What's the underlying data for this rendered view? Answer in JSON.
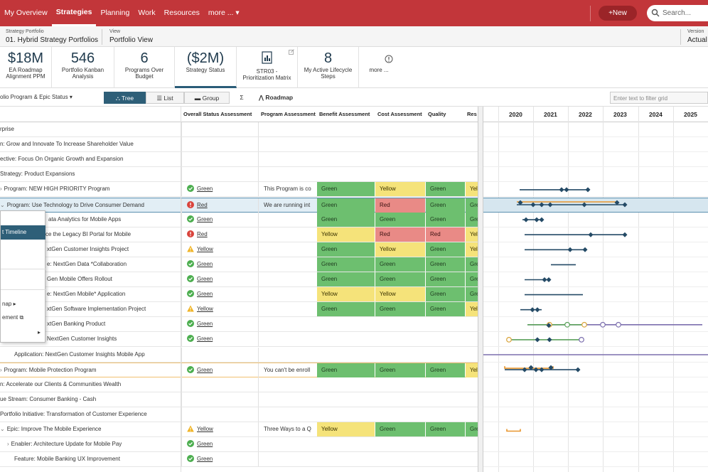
{
  "nav": {
    "items": [
      "My Overview",
      "Strategies",
      "Planning",
      "Work",
      "Resources",
      "more ... ▾"
    ],
    "active": 1,
    "new_label": "+New",
    "search_placeholder": "Search..."
  },
  "context": {
    "portfolio_label": "Strategy Portfolio",
    "portfolio_value": "01. Hybrid Strategy Portfolios",
    "view_label": "View",
    "view_value": "Portfolio View",
    "version_label": "Version",
    "version_value": "Actual"
  },
  "kpis": [
    {
      "big": "$18M",
      "caption": "EA Roadmap Alignment PPM"
    },
    {
      "big": "546",
      "caption": "Portfolio Kanban Analysis"
    },
    {
      "big": "6",
      "caption": "Programs Over Budget"
    },
    {
      "big": "($2M)",
      "caption": "Strategy Status"
    },
    {
      "icon": "matrix-icon",
      "caption": "STR03 - Prioritization Matrix"
    },
    {
      "big": "8",
      "caption": "My Active Lifecycle Steps"
    },
    {
      "icon": "info-icon",
      "caption": "more ..."
    }
  ],
  "toolbar": {
    "grid_title": "olio Program & Epic Status ▾",
    "tree_label": "Tree",
    "list_label": "List",
    "group_label": "Group",
    "sum_label": "Σ",
    "roadmap_label": "Roadmap",
    "filter_placeholder": "Enter text to filter grid"
  },
  "columns": [
    "Overall Status Assessment",
    "Program Assessment",
    "Benefit Assessment",
    "Cost Assessment",
    "Quality",
    "Res"
  ],
  "rows": [
    {
      "name": "rprise",
      "indent": 0
    },
    {
      "name": "n: Grow and Innovate To Increase Shareholder Value",
      "indent": 0
    },
    {
      "name": "ective: Focus On Organic Growth and Expansion",
      "indent": 0
    },
    {
      "name": "Strategy: Product Expansions",
      "indent": 0
    },
    {
      "name": "Program: NEW HIGH PRIORITY Program",
      "chev": "›",
      "status": "green",
      "status_text": "Green",
      "prog": "This Program is co",
      "c1": "Green",
      "c2": "Yellow",
      "c3": "Green",
      "c4": "Yel"
    },
    {
      "name": "Program: Use Technology to Drive Consumer Demand",
      "chev": "⌄",
      "status": "red",
      "status_text": "Red",
      "prog": "We are running int",
      "c1": "Green",
      "c2": "Red",
      "c3": "Green",
      "c4": "Gre",
      "sel": true
    },
    {
      "name": "ata Analytics for Mobile Apps",
      "name_left": 68,
      "status": "green",
      "status_text": "Green",
      "c1": "Green",
      "c2": "Green",
      "c3": "Green",
      "c4": "Gre"
    },
    {
      "name": "ce the Legacy BI Portal for Mobile",
      "name_left": 64,
      "status": "red",
      "status_text": "Red",
      "c1": "Yellow",
      "c2": "Red",
      "c3": "Red",
      "c4": "Yel"
    },
    {
      "name": "xtGen Customer Insights Project",
      "name_left": 66,
      "status": "yellow",
      "status_text": "Yellow",
      "c1": "Green",
      "c2": "Yellow",
      "c3": "Green",
      "c4": "Yel"
    },
    {
      "name": "e: NextGen Data *Collaboration",
      "name_left": 66,
      "status": "green",
      "status_text": "Green",
      "c1": "Green",
      "c2": "Green",
      "c3": "Green",
      "c4": "Gre"
    },
    {
      "name": "Gen Mobile Offers Rollout",
      "name_left": 66,
      "status": "green",
      "status_text": "Green",
      "c1": "Green",
      "c2": "Green",
      "c3": "Green",
      "c4": "Gre"
    },
    {
      "name": "e: NextGen Mobile* Application",
      "name_left": 66,
      "status": "green",
      "status_text": "Green",
      "c1": "Yellow",
      "c2": "Yellow",
      "c3": "Green",
      "c4": "Gre"
    },
    {
      "name": "xtGen Software Implementation Project",
      "name_left": 66,
      "status": "yellow",
      "status_text": "Yellow",
      "c1": "Green",
      "c2": "Green",
      "c3": "Green",
      "c4": "Yel"
    },
    {
      "name": "xtGen Banking Product",
      "name_left": 66,
      "status": "green",
      "status_text": "Green"
    },
    {
      "name": "NextGen Customer Insights",
      "name_left": 66,
      "status": "green",
      "status_text": "Green"
    },
    {
      "name": "Application: NextGen Customer Insights Mobile App",
      "name_left": 20
    },
    {
      "name": "Program: Mobile Protection Program",
      "chev": "›",
      "status": "green",
      "status_text": "Green",
      "prog": "You can't be enroll",
      "c1": "Green",
      "c2": "Green",
      "c3": "Green",
      "c4": "Yel",
      "hl": true
    },
    {
      "name": "n: Accelerate our Clients & Communities Wealth",
      "indent": 0
    },
    {
      "name": "ue Stream: Consumer Banking - Cash",
      "indent": 0
    },
    {
      "name": "Portfolio Initiative: Transformation of Customer Experience",
      "indent": 0
    },
    {
      "name": "Epic: Improve The Mobile Experience",
      "chev": "⌄",
      "status": "yellow",
      "status_text": "Yellow",
      "prog": "Three Ways to a Q",
      "c1": "Yellow",
      "c2": "Green",
      "c3": "Green",
      "c4": "Gre"
    },
    {
      "name": "Enabler: Architecture Update for Mobile Pay",
      "chev": "›",
      "name_left": 10,
      "status": "green",
      "status_text": "Green"
    },
    {
      "name": "Feature: Mobile Banking UX Improvement",
      "name_left": 20,
      "status": "green",
      "status_text": "Green"
    }
  ],
  "context_menu": {
    "items": [
      {
        "label": "t Timeline",
        "active": true
      },
      {
        "label": "nap ▸"
      },
      {
        "label": "ement ⧉"
      },
      {
        "label": "▸"
      }
    ]
  },
  "timeline": {
    "years": [
      "2020",
      "2021",
      "2022",
      "2023",
      "2024",
      "2025"
    ],
    "colors": {
      "navy": "#244a66",
      "orange": "#e8962e",
      "green": "#5aa05a",
      "purple": "#7c6fae",
      "gold": "#d9a43a"
    }
  }
}
